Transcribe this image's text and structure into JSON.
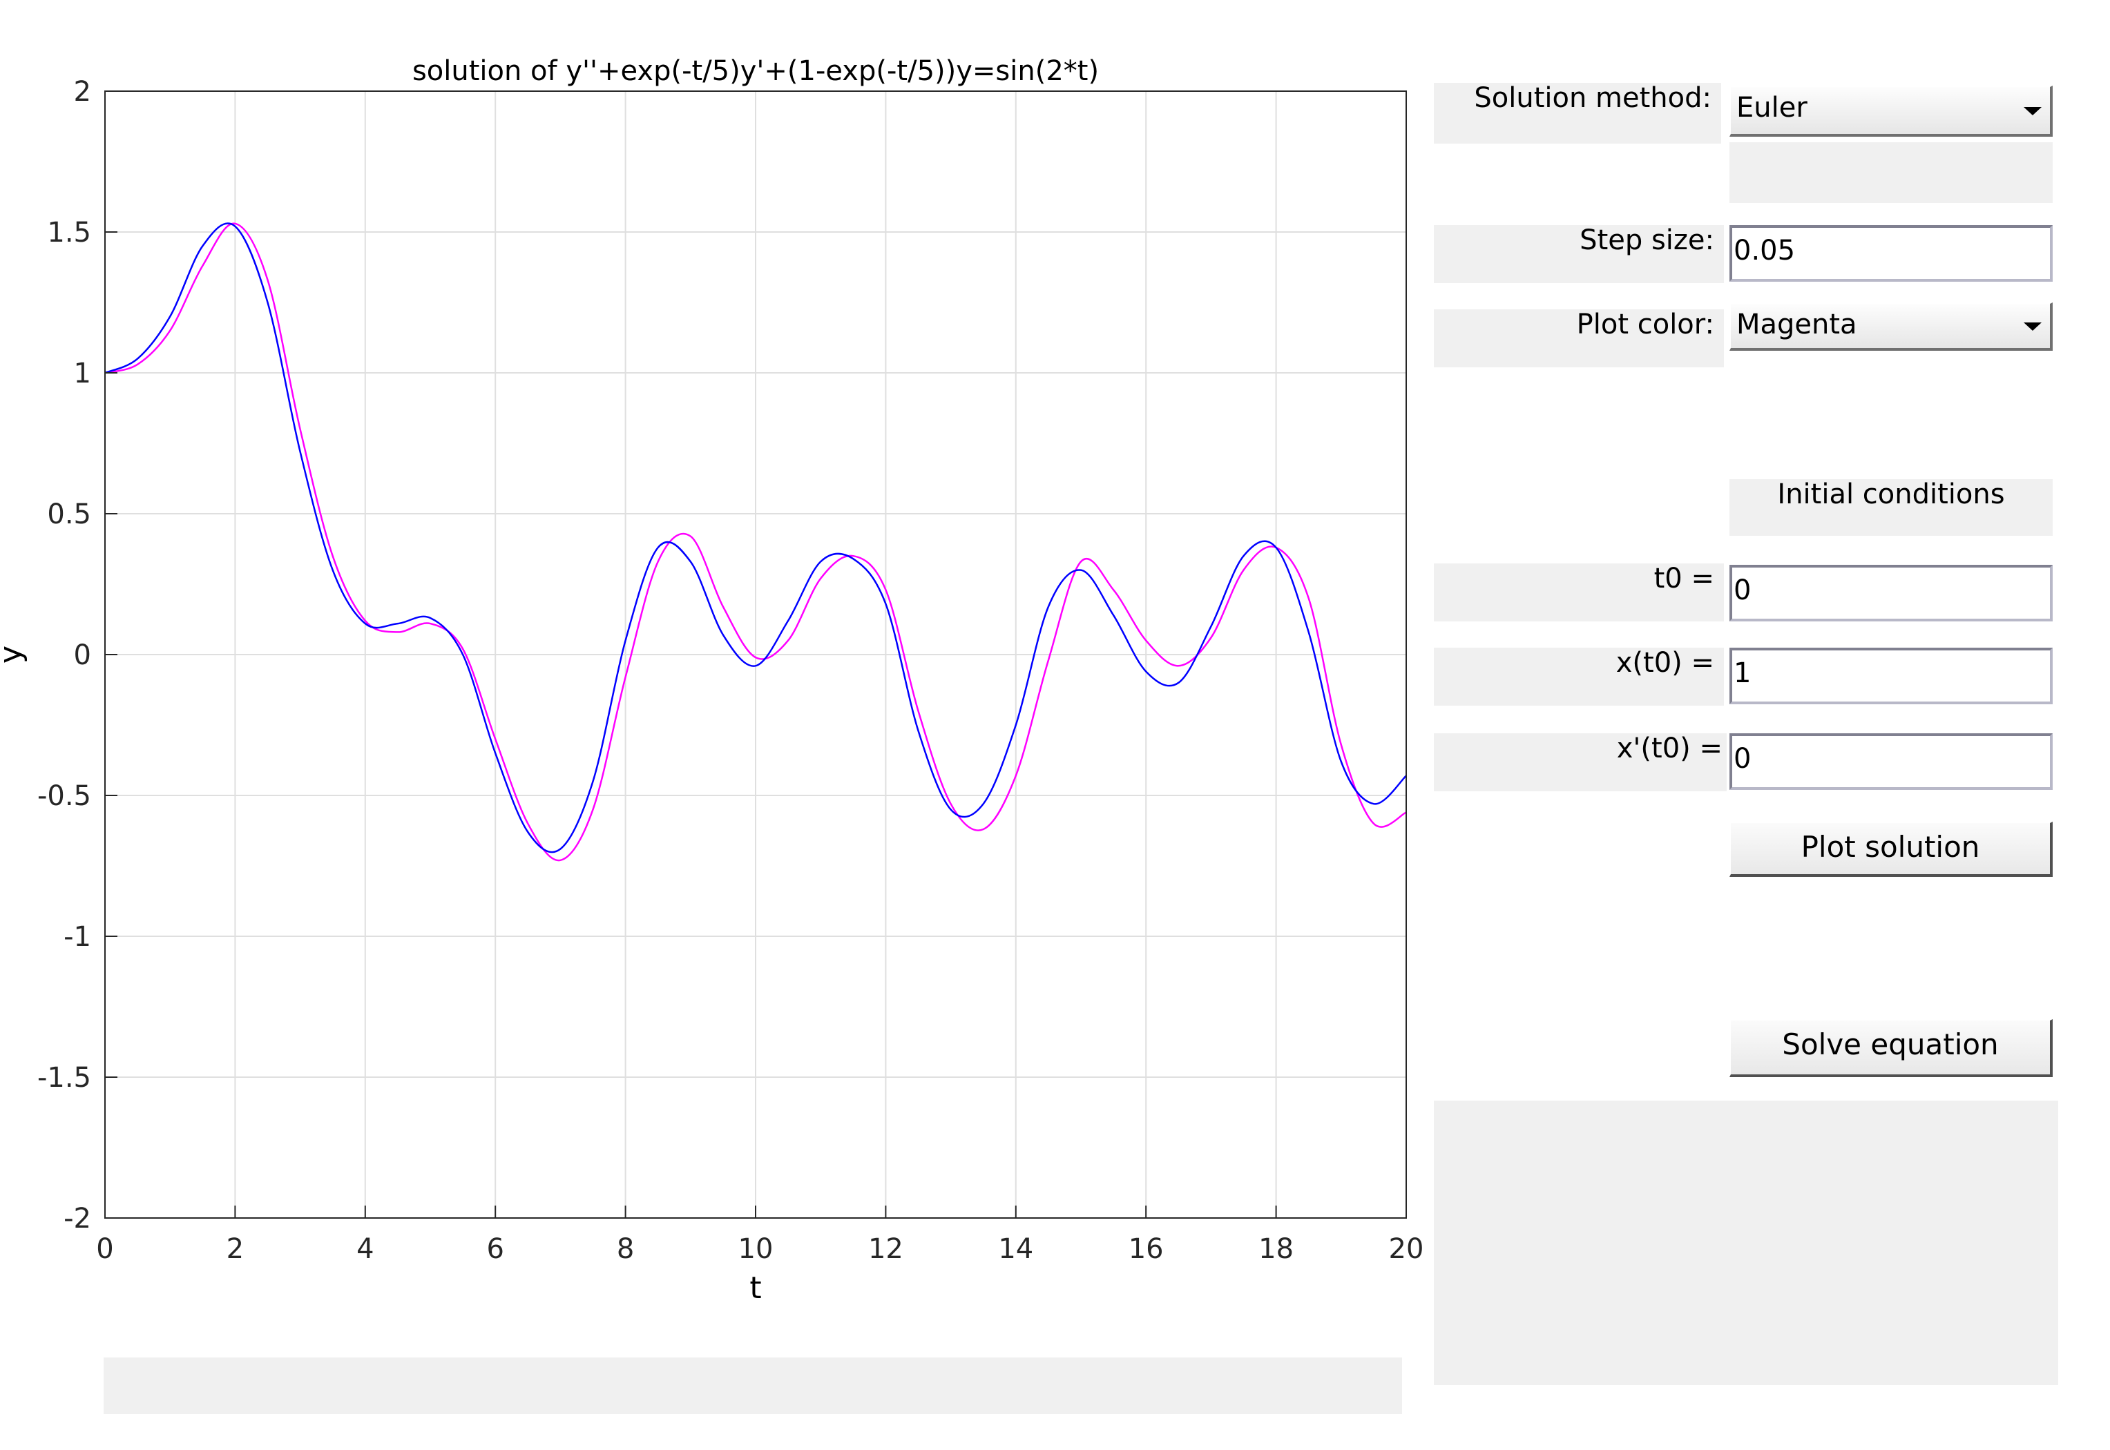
{
  "figure": {
    "status_bar_text": "",
    "message_panel_text": ""
  },
  "chart_data": {
    "type": "line",
    "title": "solution of y''+exp(-t/5)y'+(1-exp(-t/5))y=sin(2*t)",
    "xlabel": "t",
    "ylabel": "y",
    "xlim": [
      0,
      20
    ],
    "ylim": [
      -2,
      2
    ],
    "xticks": [
      "0",
      "2",
      "4",
      "6",
      "8",
      "10",
      "12",
      "14",
      "16",
      "18",
      "20"
    ],
    "yticks": [
      "2",
      "1.5",
      "1",
      "0.5",
      "0",
      "-0.5",
      "-1",
      "-1.5",
      "-2"
    ],
    "grid": true,
    "series": [
      {
        "color": "#ff00ff",
        "x": [
          0,
          0.5,
          1,
          1.5,
          2,
          2.5,
          3,
          3.5,
          4,
          4.5,
          5,
          5.5,
          6,
          6.5,
          7,
          7.5,
          8,
          8.5,
          9,
          9.5,
          10,
          10.5,
          11,
          11.5,
          12,
          12.5,
          13,
          13.5,
          14,
          14.5,
          15,
          15.5,
          16,
          16.5,
          17,
          17.5,
          18,
          18.5,
          19,
          19.5,
          20
        ],
        "y": [
          1,
          1.03,
          1.15,
          1.38,
          1.53,
          1.33,
          0.8,
          0.35,
          0.12,
          0.08,
          0.11,
          0.02,
          -0.3,
          -0.6,
          -0.73,
          -0.55,
          -0.08,
          0.33,
          0.42,
          0.17,
          -0.01,
          0.05,
          0.27,
          0.35,
          0.23,
          -0.2,
          -0.53,
          -0.62,
          -0.43,
          -0.02,
          0.33,
          0.23,
          0.05,
          -0.04,
          0.06,
          0.3,
          0.38,
          0.2,
          -0.32,
          -0.6,
          -0.56
        ]
      },
      {
        "color": "#0000ff",
        "x": [
          0,
          0.5,
          1,
          1.5,
          2,
          2.5,
          3,
          3.5,
          4,
          4.5,
          5,
          5.5,
          6,
          6.5,
          7,
          7.5,
          8,
          8.5,
          9,
          9.5,
          10,
          10.5,
          11,
          11.5,
          12,
          12.5,
          13,
          13.5,
          14,
          14.5,
          15,
          15.5,
          16,
          16.5,
          17,
          17.5,
          18,
          18.5,
          19,
          19.5,
          20
        ],
        "y": [
          1,
          1.05,
          1.2,
          1.45,
          1.52,
          1.25,
          0.72,
          0.3,
          0.11,
          0.11,
          0.13,
          0.0,
          -0.35,
          -0.63,
          -0.69,
          -0.45,
          0.05,
          0.38,
          0.33,
          0.07,
          -0.04,
          0.12,
          0.33,
          0.34,
          0.18,
          -0.27,
          -0.55,
          -0.53,
          -0.25,
          0.17,
          0.3,
          0.14,
          -0.06,
          -0.1,
          0.1,
          0.35,
          0.38,
          0.08,
          -0.38,
          -0.53,
          -0.43
        ]
      }
    ]
  },
  "controls": {
    "method_label": "Solution method:",
    "method_value": "Euler",
    "step_label": "Step size:",
    "step_value": "0.05",
    "color_label": "Plot color:",
    "color_value": "Magenta",
    "ic_heading": "Initial conditions",
    "t0_label": "t0 =",
    "t0_value": "0",
    "x0_label": "x(t0) =",
    "x0_value": "1",
    "dx0_label": "x'(t0) =",
    "dx0_value": "0",
    "plot_button": "Plot solution",
    "solve_button": "Solve equation"
  }
}
